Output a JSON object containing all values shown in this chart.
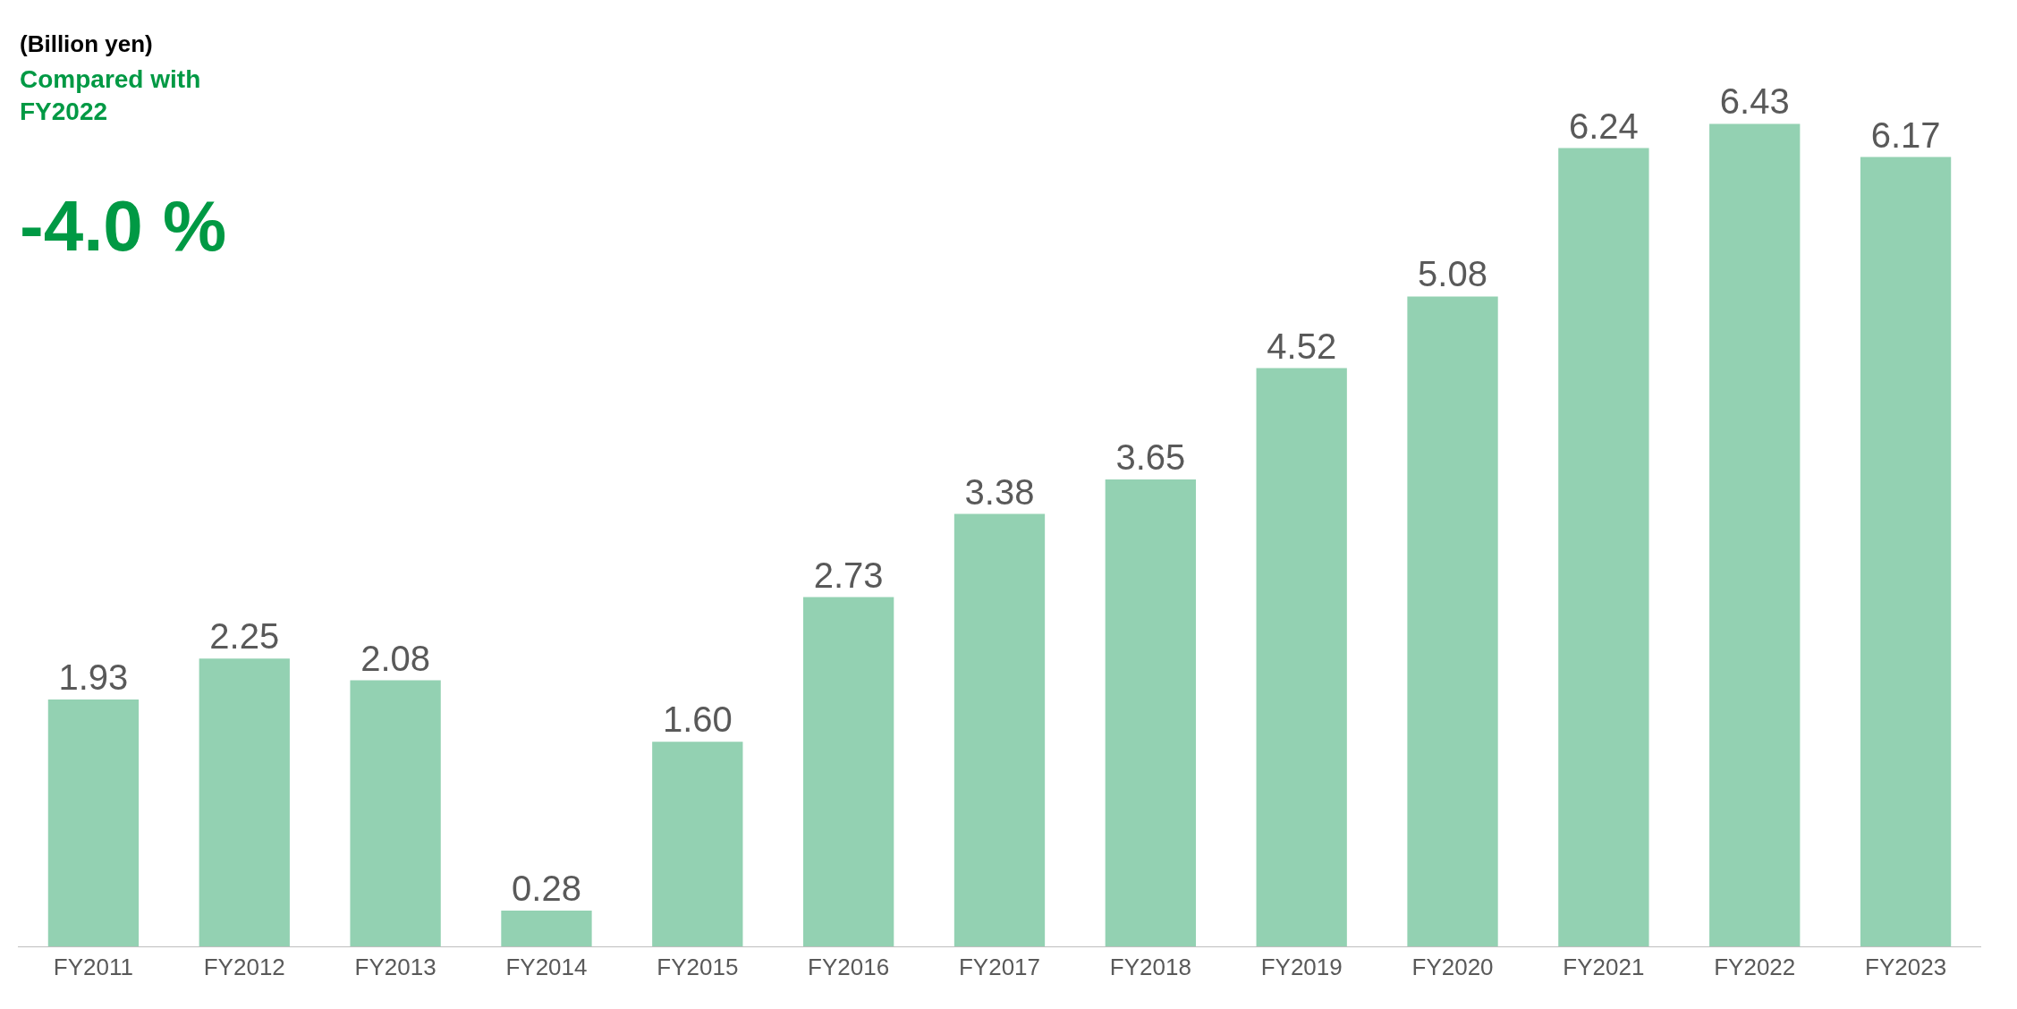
{
  "chart_data": {
    "type": "bar",
    "ylabel": "(Billion yen)",
    "categories": [
      "FY2011",
      "FY2012",
      "FY2013",
      "FY2014",
      "FY2015",
      "FY2016",
      "FY2017",
      "FY2018",
      "FY2019",
      "FY2020",
      "FY2021",
      "FY2022",
      "FY2023"
    ],
    "values": [
      1.93,
      2.25,
      2.08,
      0.28,
      1.6,
      2.73,
      3.38,
      3.65,
      4.52,
      5.08,
      6.24,
      6.43,
      6.17
    ],
    "color": "#93d1b2",
    "value_labels": [
      "1.93",
      "2.25",
      "2.08",
      "0.28",
      "1.60",
      "2.73",
      "3.38",
      "3.65",
      "4.52",
      "5.08",
      "6.24",
      "6.43",
      "6.17"
    ],
    "annotations": [
      "Compared with\nFY2022",
      "-4.0 %"
    ],
    "legend": false
  }
}
